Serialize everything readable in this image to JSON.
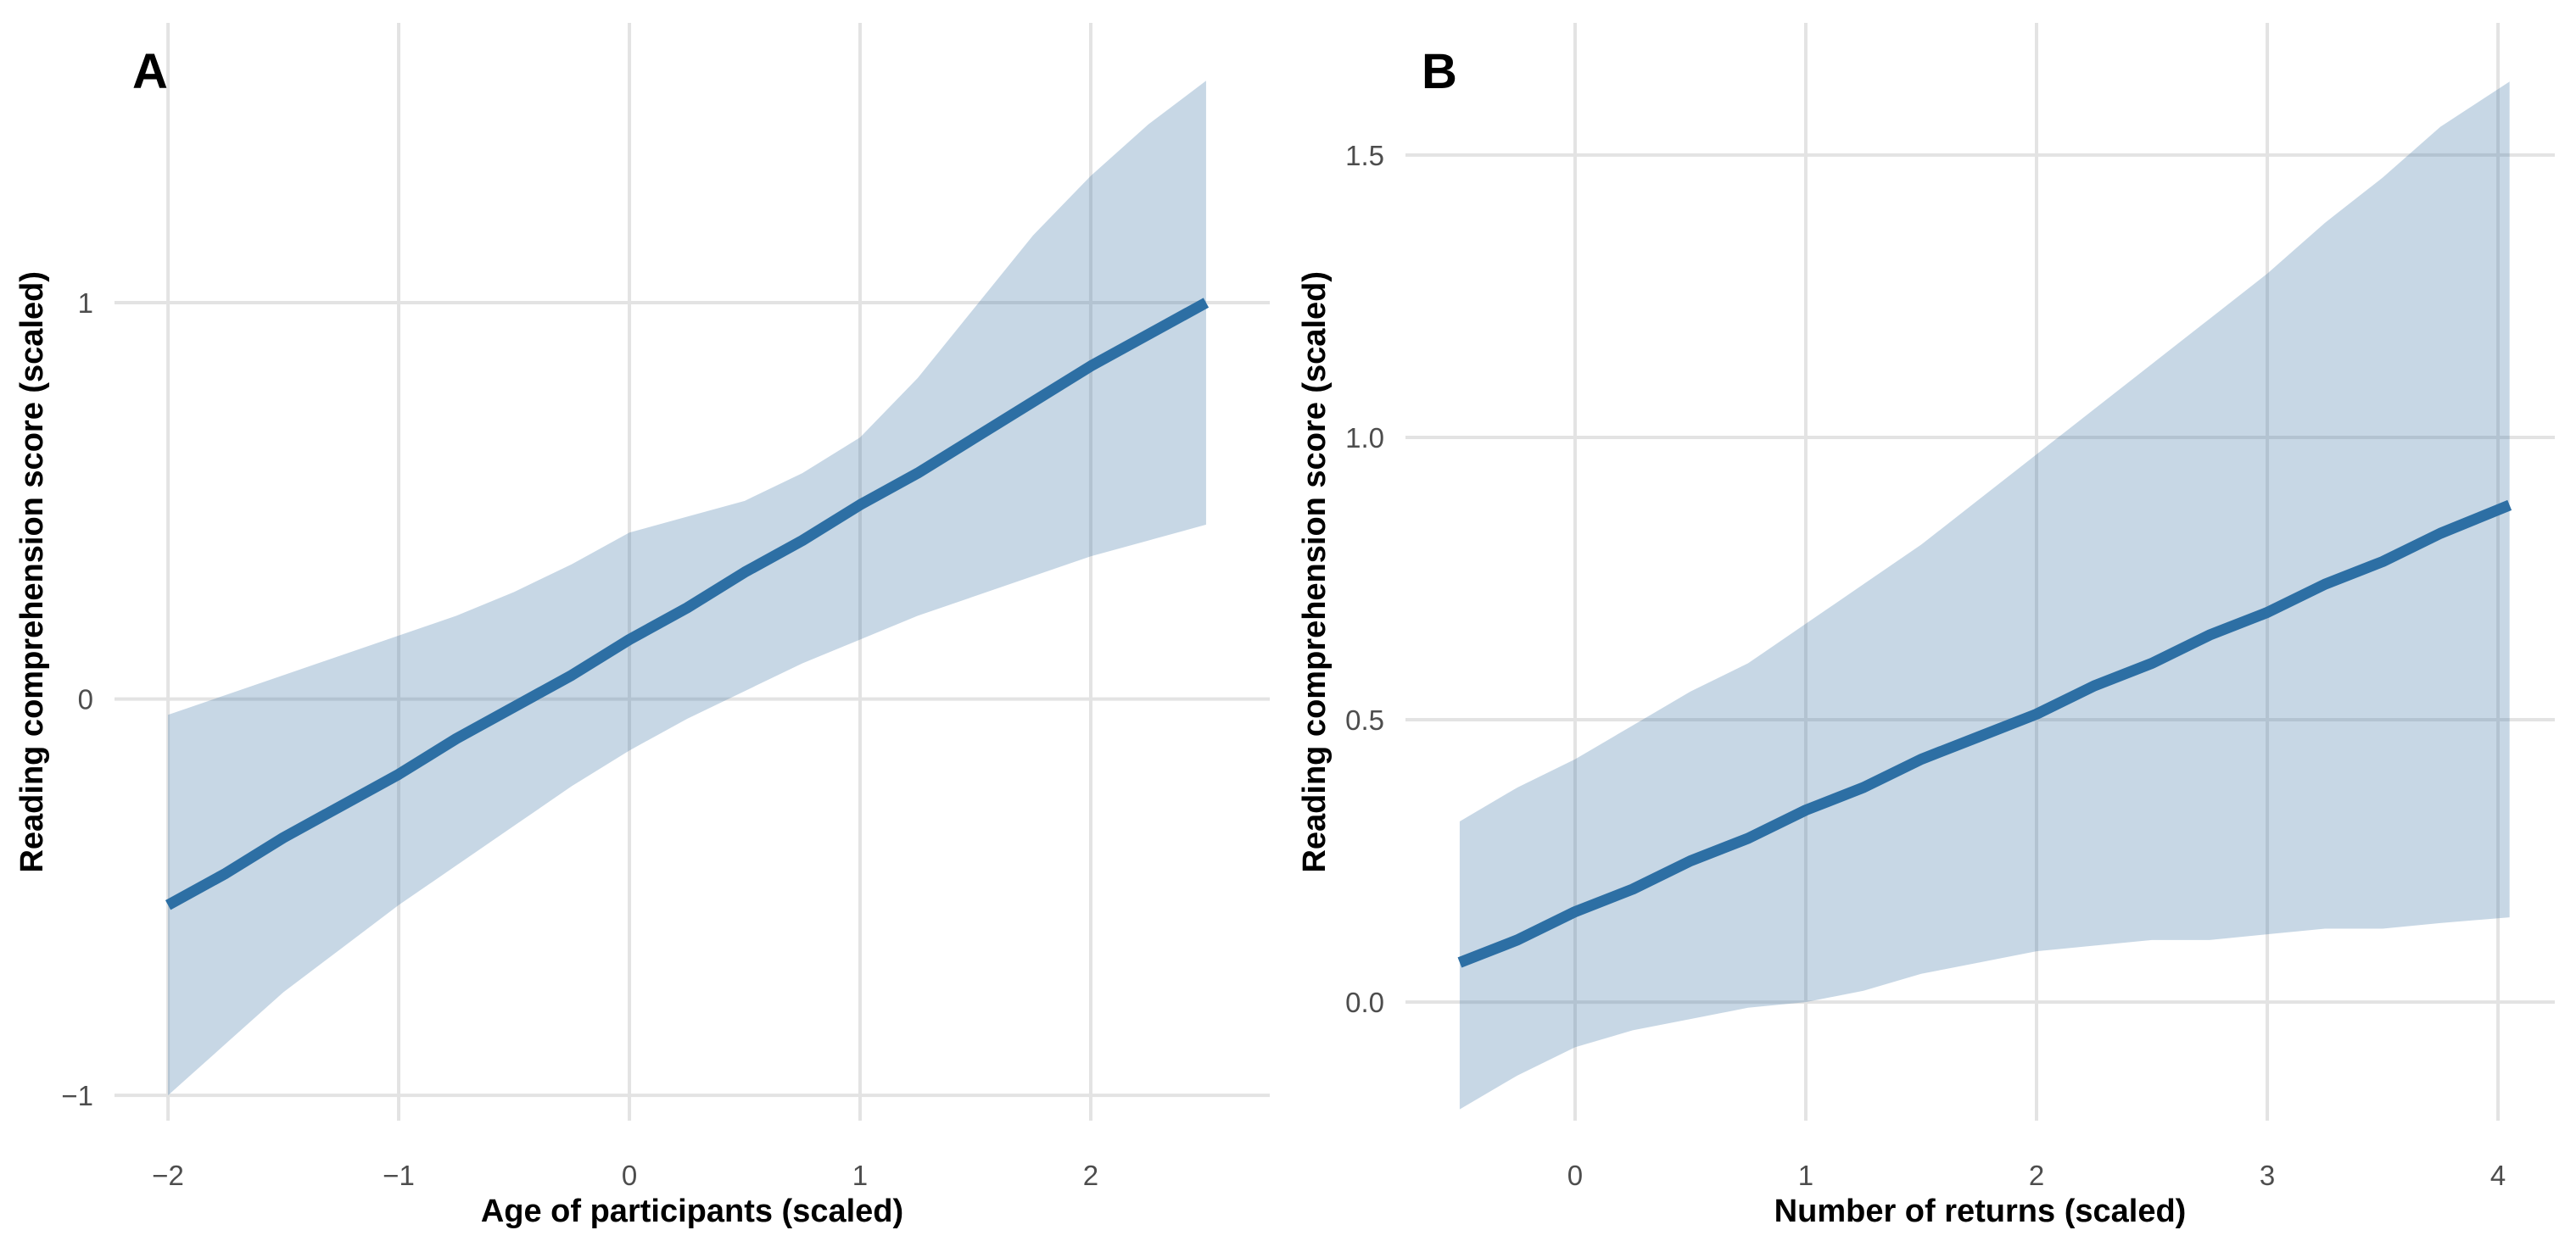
{
  "figure": {
    "background": "#ffffff"
  },
  "colors": {
    "trend_line": "#2d6fa4",
    "ci_fill": "#477aaa",
    "ci_opacity": 0.3,
    "gridline": "#e3e3e3",
    "tick_text": "#4d4d4d",
    "axis_text": "#000000"
  },
  "chart_data": [
    {
      "type": "line",
      "panel_tag": "A",
      "xlabel": "Age of participants (scaled)",
      "ylabel": "Reading comprehension score (scaled)",
      "xlim": [
        -2.232,
        2.776
      ],
      "ylim": [
        -1.064,
        1.706
      ],
      "grid": true,
      "legend": "none",
      "x_ticks": {
        "values": [
          -2,
          -1,
          0,
          1,
          2
        ],
        "labels": [
          "−2",
          "−1",
          "0",
          "1",
          "2"
        ]
      },
      "y_ticks": {
        "values": [
          -1,
          0,
          1
        ],
        "labels": [
          "−1",
          "0",
          "1"
        ]
      },
      "series": [
        {
          "name": "fitted-trend",
          "x": [
            -2,
            -1.75,
            -1.5,
            -1.25,
            -1,
            -0.75,
            -0.5,
            -0.25,
            0,
            0.25,
            0.5,
            0.75,
            1,
            1.25,
            1.5,
            1.75,
            2,
            2.25,
            2.5
          ],
          "y": [
            -0.52,
            -0.44,
            -0.35,
            -0.27,
            -0.19,
            -0.1,
            -0.02,
            0.06,
            0.15,
            0.23,
            0.32,
            0.4,
            0.49,
            0.57,
            0.66,
            0.75,
            0.84,
            0.92,
            1.0
          ]
        }
      ],
      "ci_band": {
        "x": [
          -2,
          -1.75,
          -1.5,
          -1.25,
          -1,
          -0.75,
          -0.5,
          -0.25,
          0,
          0.25,
          0.5,
          0.75,
          1,
          1.25,
          1.5,
          1.75,
          2,
          2.25,
          2.5
        ],
        "upper": [
          -0.04,
          0.01,
          0.06,
          0.11,
          0.16,
          0.21,
          0.27,
          0.34,
          0.42,
          0.46,
          0.5,
          0.57,
          0.66,
          0.81,
          0.99,
          1.17,
          1.32,
          1.45,
          1.56
        ],
        "lower": [
          -1.0,
          -0.87,
          -0.74,
          -0.63,
          -0.52,
          -0.42,
          -0.32,
          -0.22,
          -0.13,
          -0.05,
          0.02,
          0.09,
          0.15,
          0.21,
          0.26,
          0.31,
          0.36,
          0.4,
          0.44
        ]
      }
    },
    {
      "type": "line",
      "panel_tag": "B",
      "xlabel": "Number of returns (scaled)",
      "ylabel": "Reading comprehension score (scaled)",
      "xlim": [
        -0.735,
        4.246
      ],
      "ylim": [
        -0.21,
        1.734
      ],
      "grid": true,
      "legend": "none",
      "x_ticks": {
        "values": [
          0,
          1,
          2,
          3,
          4
        ],
        "labels": [
          "0",
          "1",
          "2",
          "3",
          "4"
        ]
      },
      "y_ticks": {
        "values": [
          0,
          0.5,
          1,
          1.5
        ],
        "labels": [
          "0.0",
          "0.5",
          "1.0",
          "1.5"
        ]
      },
      "series": [
        {
          "name": "fitted-trend",
          "x": [
            -0.5,
            -0.25,
            0,
            0.25,
            0.5,
            0.75,
            1,
            1.25,
            1.5,
            1.75,
            2,
            2.25,
            2.5,
            2.75,
            3,
            3.25,
            3.5,
            3.75,
            4.05
          ],
          "y": [
            0.07,
            0.11,
            0.16,
            0.2,
            0.25,
            0.29,
            0.34,
            0.38,
            0.43,
            0.47,
            0.51,
            0.56,
            0.6,
            0.65,
            0.69,
            0.74,
            0.78,
            0.83,
            0.88
          ]
        }
      ],
      "ci_band": {
        "x": [
          -0.5,
          -0.25,
          0,
          0.25,
          0.5,
          0.75,
          1,
          1.25,
          1.5,
          1.75,
          2,
          2.25,
          2.5,
          2.75,
          3,
          3.25,
          3.5,
          3.75,
          4.05
        ],
        "upper": [
          0.32,
          0.38,
          0.43,
          0.49,
          0.55,
          0.6,
          0.67,
          0.74,
          0.81,
          0.89,
          0.97,
          1.05,
          1.13,
          1.21,
          1.29,
          1.38,
          1.46,
          1.55,
          1.63
        ],
        "lower": [
          -0.19,
          -0.13,
          -0.08,
          -0.05,
          -0.03,
          -0.01,
          0.0,
          0.02,
          0.05,
          0.07,
          0.09,
          0.1,
          0.11,
          0.11,
          0.12,
          0.13,
          0.13,
          0.14,
          0.15
        ]
      }
    }
  ]
}
